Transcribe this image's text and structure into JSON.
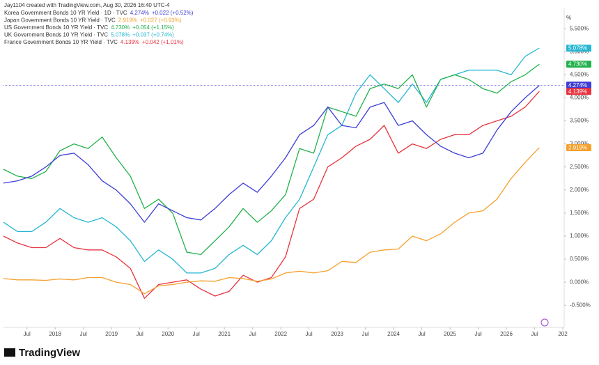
{
  "attribution": "Jay1104 created with TradingView.com, Aug 30, 2026 16:40 UTC-4",
  "logo": "TradingView",
  "chart_data": {
    "type": "line",
    "ylabel": "%",
    "x": [
      "2017-02",
      "2017-05",
      "2017-08",
      "2017-11",
      "2018-02",
      "2018-05",
      "2018-08",
      "2018-11",
      "2019-02",
      "2019-05",
      "2019-08",
      "2019-11",
      "2020-02",
      "2020-05",
      "2020-08",
      "2020-11",
      "2021-02",
      "2021-05",
      "2021-08",
      "2021-11",
      "2022-02",
      "2022-05",
      "2022-08",
      "2022-11",
      "2023-02",
      "2023-05",
      "2023-08",
      "2023-11",
      "2024-02",
      "2024-05",
      "2024-08",
      "2024-11",
      "2025-02",
      "2025-05",
      "2025-08",
      "2025-11",
      "2026-02",
      "2026-05",
      "2026-08"
    ],
    "series": [
      {
        "name": "Korea Government Bonds 10 YR Yield · 1D · TVC",
        "color": "#3d3dd6",
        "last_value": 4.274,
        "last_label": "4.274%",
        "change": "+0.022 (+0.52%)",
        "values": [
          2.15,
          2.2,
          2.3,
          2.5,
          2.75,
          2.8,
          2.55,
          2.2,
          2.0,
          1.7,
          1.3,
          1.7,
          1.55,
          1.4,
          1.35,
          1.6,
          1.9,
          2.15,
          1.95,
          2.3,
          2.7,
          3.2,
          3.4,
          3.8,
          3.4,
          3.35,
          3.8,
          3.9,
          3.4,
          3.5,
          3.2,
          2.95,
          2.8,
          2.7,
          2.8,
          3.3,
          3.7,
          4.0,
          4.27
        ]
      },
      {
        "name": "Japan Government Bonds 10 YR Yield · TVC",
        "color": "#f5a02c",
        "last_value": 2.919,
        "last_label": "2.919%",
        "change": "+0.027 (+0.93%)",
        "values": [
          0.08,
          0.05,
          0.05,
          0.04,
          0.07,
          0.05,
          0.1,
          0.1,
          0.0,
          -0.05,
          -0.25,
          -0.08,
          -0.05,
          0.0,
          0.03,
          0.02,
          0.1,
          0.08,
          0.02,
          0.07,
          0.2,
          0.24,
          0.2,
          0.25,
          0.45,
          0.43,
          0.65,
          0.7,
          0.72,
          1.0,
          0.9,
          1.05,
          1.3,
          1.5,
          1.55,
          1.8,
          2.25,
          2.6,
          2.92
        ]
      },
      {
        "name": "US Government Bonds 10 YR Yield · TVC",
        "color": "#22b14c",
        "last_value": 4.73,
        "last_label": "4.730%",
        "change": "+0.054 (+1.15%)",
        "values": [
          2.45,
          2.3,
          2.25,
          2.4,
          2.85,
          3.0,
          2.9,
          3.15,
          2.7,
          2.3,
          1.6,
          1.8,
          1.5,
          0.65,
          0.6,
          0.9,
          1.2,
          1.6,
          1.3,
          1.55,
          1.9,
          2.9,
          2.8,
          3.8,
          3.7,
          3.6,
          4.2,
          4.3,
          4.2,
          4.5,
          3.8,
          4.4,
          4.5,
          4.4,
          4.2,
          4.1,
          4.35,
          4.5,
          4.73
        ]
      },
      {
        "name": "UK Government Bonds 10 YR Yield · TVC",
        "color": "#26b6d2",
        "last_value": 5.078,
        "last_label": "5.078%",
        "change": "+0.037 (+0.74%)",
        "values": [
          1.3,
          1.1,
          1.1,
          1.3,
          1.6,
          1.4,
          1.3,
          1.4,
          1.2,
          0.9,
          0.45,
          0.7,
          0.5,
          0.2,
          0.2,
          0.3,
          0.6,
          0.8,
          0.6,
          0.9,
          1.4,
          1.8,
          2.5,
          3.2,
          3.4,
          4.1,
          4.5,
          4.2,
          3.9,
          4.3,
          3.9,
          4.4,
          4.5,
          4.6,
          4.6,
          4.6,
          4.5,
          4.9,
          5.08
        ]
      },
      {
        "name": "France Government Bonds 10 YR Yield · TVC",
        "color": "#e8333f",
        "last_value": 4.139,
        "last_label": "4.139%",
        "change": "+0.042 (+1.01%)",
        "values": [
          1.0,
          0.85,
          0.75,
          0.75,
          0.95,
          0.75,
          0.7,
          0.7,
          0.55,
          0.3,
          -0.35,
          -0.05,
          0.0,
          0.05,
          -0.15,
          -0.3,
          -0.2,
          0.15,
          0.0,
          0.1,
          0.55,
          1.6,
          1.8,
          2.5,
          2.7,
          2.95,
          3.1,
          3.4,
          2.8,
          3.0,
          2.9,
          3.1,
          3.2,
          3.2,
          3.4,
          3.5,
          3.6,
          3.8,
          4.14
        ]
      }
    ],
    "xlim": [
      "2017-02",
      "2027-01"
    ],
    "xticks": [
      {
        "value": "2017-07",
        "label": "Jul"
      },
      {
        "value": "2018-01",
        "label": "2018"
      },
      {
        "value": "2018-07",
        "label": "Jul"
      },
      {
        "value": "2019-01",
        "label": "2019"
      },
      {
        "value": "2019-07",
        "label": "Jul"
      },
      {
        "value": "2020-01",
        "label": "2020"
      },
      {
        "value": "2020-07",
        "label": "Jul"
      },
      {
        "value": "2021-01",
        "label": "2021"
      },
      {
        "value": "2021-07",
        "label": "Jul"
      },
      {
        "value": "2022-01",
        "label": "2022"
      },
      {
        "value": "2022-07",
        "label": "Jul"
      },
      {
        "value": "2023-01",
        "label": "2023"
      },
      {
        "value": "2023-07",
        "label": "Jul"
      },
      {
        "value": "2024-01",
        "label": "2024"
      },
      {
        "value": "2024-07",
        "label": "Jul"
      },
      {
        "value": "2025-01",
        "label": "2025"
      },
      {
        "value": "2025-07",
        "label": "Jul"
      },
      {
        "value": "2026-01",
        "label": "2026"
      },
      {
        "value": "2026-07",
        "label": "Jul"
      },
      {
        "value": "2027-01",
        "label": "202"
      }
    ],
    "ylim": [
      -0.98,
      5.82
    ],
    "yticks": [
      {
        "value": 5.5,
        "label": "5.500%"
      },
      {
        "value": 5.0,
        "label": "5.000%"
      },
      {
        "value": 4.5,
        "label": "4.500%"
      },
      {
        "value": 4.0,
        "label": "4.000%"
      },
      {
        "value": 3.5,
        "label": "3.500%"
      },
      {
        "value": 3.0,
        "label": "3.000%"
      },
      {
        "value": 2.5,
        "label": "2.500%"
      },
      {
        "value": 2.0,
        "label": "2.000%"
      },
      {
        "value": 1.5,
        "label": "1.500%"
      },
      {
        "value": 1.0,
        "label": "1.000%"
      },
      {
        "value": 0.5,
        "label": "0.500%"
      },
      {
        "value": 0.0,
        "label": "0.000%"
      },
      {
        "value": -0.5,
        "label": "-0.500%"
      }
    ],
    "grid": false
  }
}
